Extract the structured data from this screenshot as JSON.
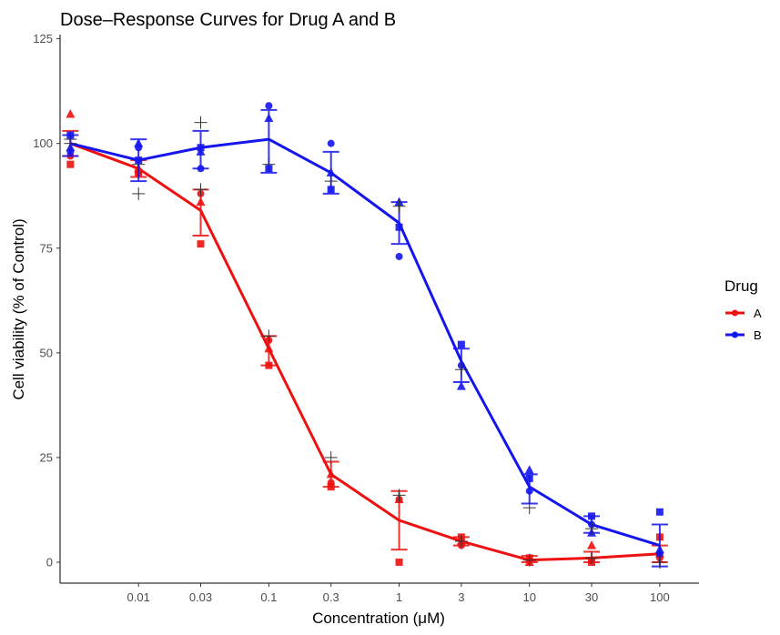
{
  "chart_data": {
    "type": "line",
    "title": "Dose–Response Curves for Drug A and B",
    "xlabel": "Concentration (μM)",
    "ylabel": "Cell viability (% of Control)",
    "x_scale": "log10",
    "xlim": [
      0.0025,
      200
    ],
    "ylim": [
      -5,
      126
    ],
    "x_ticks": [
      0.01,
      0.03,
      0.1,
      0.3,
      1,
      3,
      10,
      30,
      100
    ],
    "x_tick_labels": [
      "0.01",
      "0.03",
      "0.1",
      "0.3",
      "1",
      "3",
      "10",
      "30",
      "100"
    ],
    "y_ticks": [
      0,
      25,
      50,
      75,
      100,
      125
    ],
    "y_tick_labels": [
      "0",
      "25",
      "50",
      "75",
      "100",
      "125"
    ],
    "grid": false,
    "legend": {
      "title": "Drug",
      "position": "right",
      "entries": [
        "A",
        "B"
      ]
    },
    "series": [
      {
        "name": "A",
        "color": "#ee1111",
        "x": [
          0.003,
          0.01,
          0.03,
          0.1,
          0.3,
          1,
          3,
          10,
          30,
          100
        ],
        "mean": [
          100,
          94,
          84,
          51,
          21,
          10,
          5,
          0.5,
          1,
          2
        ],
        "error_low": [
          97,
          92,
          78,
          47,
          18,
          3,
          4,
          0,
          0,
          0
        ],
        "error_high": [
          103,
          96,
          89,
          54,
          24,
          17,
          6,
          1.5,
          2.5,
          4
        ],
        "replicates": {
          "circle": [
            97,
            93,
            88,
            53,
            19,
            15,
            4,
            0.5,
            0.5,
            1
          ],
          "triangle": [
            107,
            94,
            86,
            51,
            21,
            15,
            5,
            0,
            4,
            2
          ],
          "square": [
            95,
            93,
            76,
            47,
            18,
            0,
            6,
            1,
            0,
            6
          ],
          "plus": [
            101,
            95,
            89,
            54,
            25,
            16,
            5,
            0.5,
            1,
            0
          ]
        }
      },
      {
        "name": "B",
        "color": "#1515ee",
        "x": [
          0.003,
          0.01,
          0.03,
          0.1,
          0.3,
          1,
          3,
          10,
          30,
          100
        ],
        "mean": [
          100,
          96,
          99,
          101,
          93,
          81,
          48,
          18,
          9,
          4
        ],
        "error_low": [
          97,
          91,
          94,
          93,
          88,
          76,
          43,
          14,
          7,
          -1
        ],
        "error_high": [
          102,
          101,
          103,
          108,
          98,
          86,
          51,
          21,
          11,
          9
        ],
        "replicates": {
          "circle": [
            98,
            99,
            94,
            109,
            100,
            73,
            47,
            17,
            9,
            2
          ],
          "triangle": [
            99,
            100,
            98,
            106,
            93,
            86,
            42,
            22,
            7,
            3
          ],
          "square": [
            102,
            96,
            99,
            94,
            89,
            80,
            52,
            20,
            11,
            12
          ],
          "plus": [
            100,
            88,
            105,
            95,
            91,
            85,
            46,
            13,
            8,
            0
          ]
        }
      }
    ]
  }
}
